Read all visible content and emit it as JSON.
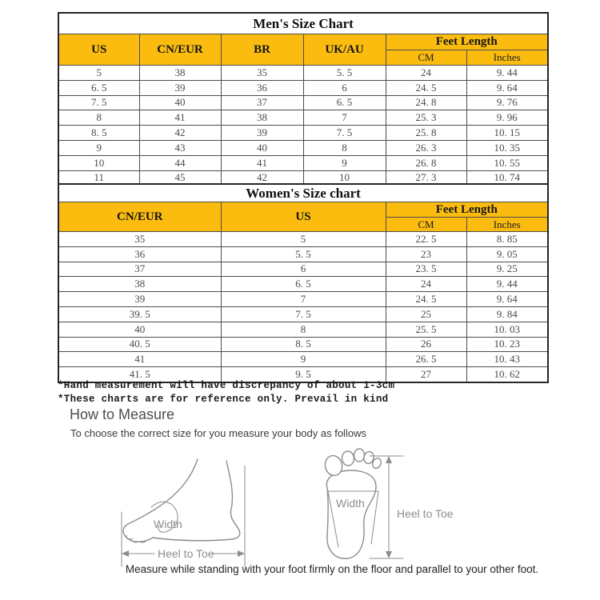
{
  "men_chart": {
    "title": "Men's Size Chart",
    "columns": [
      "US",
      "CN/EUR",
      "BR",
      "UK/AU"
    ],
    "feet_length_label": "Feet Length",
    "sub_columns": [
      "CM",
      "Inches"
    ],
    "rows": [
      [
        "5",
        "38",
        "35",
        "5.5",
        "24",
        "9.44"
      ],
      [
        "6.5",
        "39",
        "36",
        "6",
        "24.5",
        "9.64"
      ],
      [
        "7.5",
        "40",
        "37",
        "6.5",
        "24.8",
        "9.76"
      ],
      [
        "8",
        "41",
        "38",
        "7",
        "25.3",
        "9.96"
      ],
      [
        "8.5",
        "42",
        "39",
        "7.5",
        "25.8",
        "10.15"
      ],
      [
        "9",
        "43",
        "40",
        "8",
        "26.3",
        "10.35"
      ],
      [
        "10",
        "44",
        "41",
        "9",
        "26.8",
        "10.55"
      ],
      [
        "11",
        "45",
        "42",
        "10",
        "27.3",
        "10.74"
      ]
    ]
  },
  "women_chart": {
    "title": "Women's Size chart",
    "columns": [
      "CN/EUR",
      "US"
    ],
    "feet_length_label": "Feet Length",
    "sub_columns": [
      "CM",
      "Inches"
    ],
    "rows": [
      [
        "35",
        "5",
        "22.5",
        "8.85"
      ],
      [
        "36",
        "5.5",
        "23",
        "9.05"
      ],
      [
        "37",
        "6",
        "23.5",
        "9.25"
      ],
      [
        "38",
        "6.5",
        "24",
        "9.44"
      ],
      [
        "39",
        "7",
        "24.5",
        "9.64"
      ],
      [
        "39.5",
        "7.5",
        "25",
        "9.84"
      ],
      [
        "40",
        "8",
        "25.5",
        "10.03"
      ],
      [
        "40.5",
        "8.5",
        "26",
        "10.23"
      ],
      [
        "41",
        "9",
        "26.5",
        "10.43"
      ],
      [
        "41.5",
        "9.5",
        "27",
        "10.62"
      ]
    ]
  },
  "notes": [
    "*Hand measurement will have discrepancy of about 1-3cm",
    "*These charts are for reference only. Prevail in kind"
  ],
  "measure_section": {
    "title": "How to Measure",
    "subtitle": "To choose the correct size for you measure your body as follows",
    "caption": "Measure while standing with your foot firmly on the floor and parallel to your other foot.",
    "side_diagram": {
      "width_label": "Width",
      "heel_to_toe_label": "Heel to Toe"
    },
    "top_diagram": {
      "width_label": "Width",
      "heel_to_toe_label": "Heel to Toe"
    }
  },
  "colors": {
    "header_yellow": "#FBBC0F",
    "table_border": "#4c4c4c",
    "diagram_stroke": "#8c8c8c"
  }
}
